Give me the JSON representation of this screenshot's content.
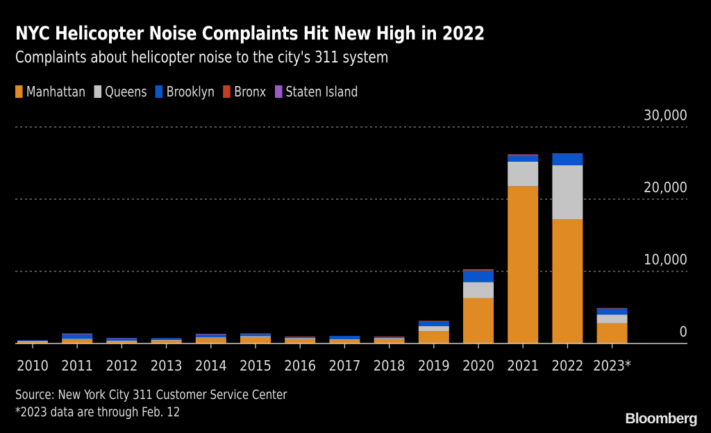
{
  "header": {
    "title": "NYC Helicopter Noise Complaints Hit New High in 2022",
    "subtitle": "Complaints about helicopter noise to the city's 311 system"
  },
  "legend": [
    {
      "label": "Manhattan",
      "color": "#e08a24"
    },
    {
      "label": "Queens",
      "color": "#c4c4c4"
    },
    {
      "label": "Brooklyn",
      "color": "#0a55cc"
    },
    {
      "label": "Bronx",
      "color": "#c0401e"
    },
    {
      "label": "Staten Island",
      "color": "#9b59c8"
    }
  ],
  "footer": {
    "source": "Source: New York City 311 Customer Service Center",
    "note": "*2023 data are through Feb. 12",
    "brand": "Bloomberg"
  },
  "chart_data": {
    "type": "bar",
    "stacked": true,
    "title": "NYC Helicopter Noise Complaints Hit New High in 2022",
    "subtitle": "Complaints about helicopter noise to the city's 311 system",
    "xlabel": "",
    "ylabel": "",
    "ylim": [
      0,
      30000
    ],
    "yticks": [
      0,
      10000,
      20000,
      30000
    ],
    "ytick_labels": [
      "0",
      "10,000",
      "20,000",
      "30,000"
    ],
    "y_axis_position": "right",
    "grid": true,
    "legend_position": "top-left",
    "categories": [
      "2010",
      "2011",
      "2012",
      "2013",
      "2014",
      "2015",
      "2016",
      "2017",
      "2018",
      "2019",
      "2020",
      "2021",
      "2022",
      "2023*"
    ],
    "series": [
      {
        "name": "Manhattan",
        "color": "#e08a24",
        "values": [
          200,
          550,
          300,
          450,
          750,
          850,
          600,
          500,
          600,
          1700,
          6300,
          21800,
          17200,
          2800
        ]
      },
      {
        "name": "Queens",
        "color": "#c4c4c4",
        "values": [
          150,
          100,
          100,
          50,
          100,
          150,
          150,
          100,
          150,
          700,
          2200,
          3400,
          7500,
          1200
        ]
      },
      {
        "name": "Brooklyn",
        "color": "#0a55cc",
        "values": [
          100,
          650,
          300,
          250,
          400,
          300,
          150,
          450,
          150,
          700,
          1600,
          800,
          1600,
          900
        ]
      },
      {
        "name": "Bronx",
        "color": "#c0401e",
        "values": [
          0,
          50,
          0,
          0,
          50,
          100,
          80,
          0,
          80,
          50,
          200,
          150,
          50,
          20
        ]
      },
      {
        "name": "Staten Island",
        "color": "#9b59c8",
        "values": [
          0,
          30,
          60,
          0,
          30,
          0,
          0,
          0,
          0,
          0,
          0,
          60,
          0,
          0
        ]
      }
    ]
  }
}
